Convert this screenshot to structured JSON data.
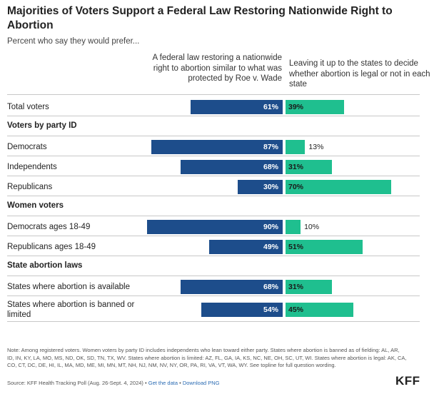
{
  "title": "Majorities of Voters Support a Federal Law Restoring Nationwide Right to Abortion",
  "subtitle": "Percent who say they would prefer...",
  "columns": {
    "left": "A federal law restoring a nationwide right to abortion similar to what was protected by Roe v. Wade",
    "right": "Leaving it up to the states to decide whether abortion is legal or not in each state"
  },
  "chart_data": {
    "type": "bar",
    "series": [
      {
        "name": "A federal law restoring a nationwide right to abortion similar to what was protected by Roe v. Wade",
        "color": "#1d4d8b"
      },
      {
        "name": "Leaving it up to the states to decide whether abortion is legal or not in each state",
        "color": "#1fbf8f"
      }
    ],
    "rows": [
      {
        "group": "",
        "label": "Total voters",
        "left": 61,
        "right": 39,
        "left_text": "61%",
        "right_text": "39%"
      },
      {
        "group": "Voters by party ID",
        "label": "Democrats",
        "left": 87,
        "right": 13,
        "left_text": "87%",
        "right_text": "13%"
      },
      {
        "group": "Voters by party ID",
        "label": "Independents",
        "left": 68,
        "right": 31,
        "left_text": "68%",
        "right_text": "31%"
      },
      {
        "group": "Voters by party ID",
        "label": "Republicans",
        "left": 30,
        "right": 70,
        "left_text": "30%",
        "right_text": "70%"
      },
      {
        "group": "Women voters",
        "label": "Democrats ages 18-49",
        "left": 90,
        "right": 10,
        "left_text": "90%",
        "right_text": "10%"
      },
      {
        "group": "Women voters",
        "label": "Republicans ages 18-49",
        "left": 49,
        "right": 51,
        "left_text": "49%",
        "right_text": "51%"
      },
      {
        "group": "State abortion laws",
        "label": "States where abortion is available",
        "left": 68,
        "right": 31,
        "left_text": "68%",
        "right_text": "31%"
      },
      {
        "group": "State abortion laws",
        "label": "States where abortion is banned or limited",
        "left": 54,
        "right": 45,
        "left_text": "54%",
        "right_text": "45%"
      }
    ],
    "groups": [
      "Voters by party ID",
      "Women voters",
      "State abortion laws"
    ]
  },
  "note": "Note: Among registered voters. Women voters by party ID includes independents who lean toward either party. States where abortion is banned as of fielding: AL, AR, ID, IN, KY, LA, MO, MS, ND, OK, SD, TN, TX, WV. States where abortion is limited: AZ, FL, GA, IA, KS, NC, NE, OH, SC, UT, WI. States where abortion is legal: AK, CA, CO, CT, DC, DE, HI, IL, MA, MD, ME, MI, MN, MT, NH, NJ, NM, NV, NY, OR, PA, RI, VA, VT, WA, WY. See topline for full question wording.",
  "source": {
    "text": "Source: KFF Health Tracking Poll (Aug. 26-Sept. 4, 2024) •",
    "link1": "Get the data",
    "sep": "•",
    "link2": "Download PNG"
  },
  "logo": "KFF"
}
